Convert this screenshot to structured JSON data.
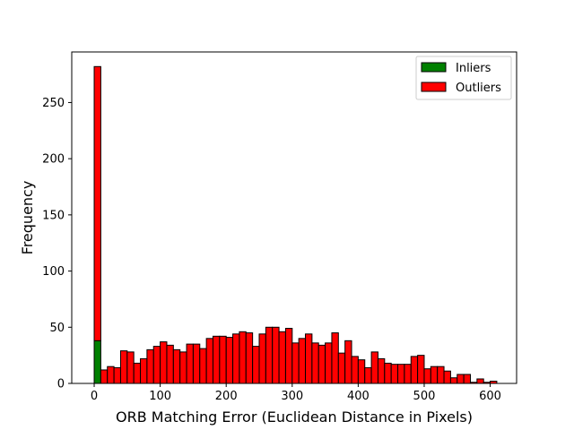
{
  "chart_data": {
    "type": "bar",
    "stacked": true,
    "xlabel": "ORB Matching Error (Euclidean Distance in Pixels)",
    "ylabel": "Frequency",
    "xlim": [
      -34,
      640
    ],
    "ylim": [
      0,
      295
    ],
    "xticks": [
      0,
      100,
      200,
      300,
      400,
      500,
      600
    ],
    "yticks": [
      0,
      50,
      100,
      150,
      200,
      250
    ],
    "bin_width": 10,
    "bin_starts": [
      0,
      10,
      20,
      30,
      40,
      50,
      60,
      70,
      80,
      90,
      100,
      110,
      120,
      130,
      140,
      150,
      160,
      170,
      180,
      190,
      200,
      210,
      220,
      230,
      240,
      250,
      260,
      270,
      280,
      290,
      300,
      310,
      320,
      330,
      340,
      350,
      360,
      370,
      380,
      390,
      400,
      410,
      420,
      430,
      440,
      450,
      460,
      470,
      480,
      490,
      500,
      510,
      520,
      530,
      540,
      550,
      560,
      570,
      580,
      590,
      600
    ],
    "series": [
      {
        "name": "Inliers",
        "color": "#008000",
        "values": [
          38,
          0,
          0,
          0,
          0,
          0,
          0,
          0,
          0,
          0,
          0,
          0,
          0,
          0,
          0,
          0,
          0,
          0,
          0,
          0,
          0,
          0,
          0,
          0,
          0,
          0,
          0,
          0,
          0,
          0,
          0,
          0,
          0,
          0,
          0,
          0,
          0,
          0,
          0,
          0,
          0,
          0,
          0,
          0,
          0,
          0,
          0,
          0,
          0,
          0,
          0,
          0,
          0,
          0,
          0,
          0,
          0,
          0,
          0,
          0,
          0
        ]
      },
      {
        "name": "Outliers",
        "color": "#ff0000",
        "values": [
          244,
          12,
          15,
          14,
          29,
          28,
          18,
          22,
          30,
          33,
          37,
          34,
          30,
          28,
          35,
          35,
          31,
          40,
          42,
          42,
          41,
          44,
          46,
          45,
          33,
          44,
          50,
          50,
          46,
          49,
          36,
          40,
          44,
          36,
          34,
          36,
          45,
          27,
          38,
          24,
          21,
          14,
          28,
          22,
          18,
          17,
          17,
          17,
          24,
          25,
          13,
          15,
          15,
          11,
          5,
          8,
          8,
          1,
          4,
          1,
          2
        ]
      }
    ],
    "legend_position": "upper-right",
    "grid": false
  }
}
